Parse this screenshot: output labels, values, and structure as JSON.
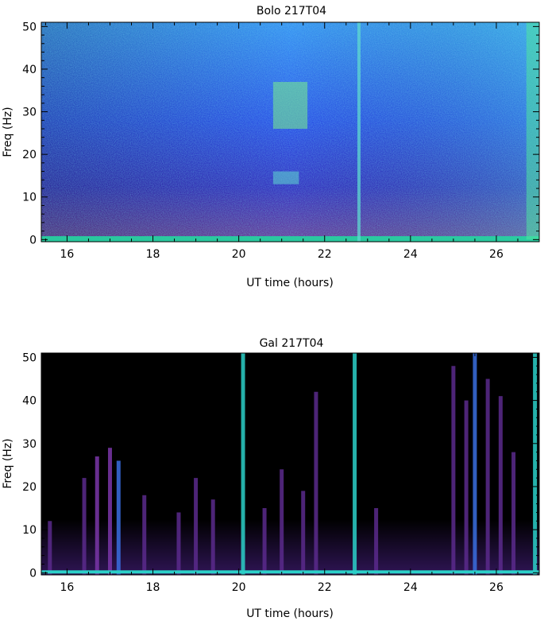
{
  "chart_data": [
    {
      "type": "heatmap",
      "title": "Bolo 217T04",
      "xlabel": "UT time (hours)",
      "ylabel": "Freq (Hz)",
      "xlim": [
        15.4,
        27.0
      ],
      "ylim": [
        -0.5,
        51
      ],
      "xticks": [
        16,
        18,
        20,
        22,
        24,
        26
      ],
      "yticks": [
        0,
        10,
        20,
        30,
        40,
        50
      ],
      "background": "#1a34e0",
      "features": [
        {
          "kind": "band",
          "x": [
            15.4,
            27.0
          ],
          "y": [
            -0.5,
            0.8
          ],
          "color": "#23d6a0"
        },
        {
          "kind": "patch",
          "x": [
            20.8,
            21.6
          ],
          "y": [
            26,
            37
          ],
          "color": "#7af08a"
        },
        {
          "kind": "patch",
          "x": [
            20.8,
            21.4
          ],
          "y": [
            13,
            16
          ],
          "color": "#5fd8d0"
        },
        {
          "kind": "line",
          "x": 22.8,
          "color": "#5fd8d0"
        },
        {
          "kind": "patch",
          "x": [
            26.7,
            27.0
          ],
          "y": [
            0,
            51
          ],
          "color": "#4fe6a0"
        }
      ]
    },
    {
      "type": "heatmap",
      "title": "Gal 217T04",
      "xlabel": "UT time (hours)",
      "ylabel": "Freq (Hz)",
      "xlim": [
        15.4,
        27.0
      ],
      "ylim": [
        -0.5,
        51
      ],
      "xticks": [
        16,
        18,
        20,
        22,
        24,
        26
      ],
      "yticks": [
        0,
        10,
        20,
        30,
        40,
        50
      ],
      "background": "#000000",
      "spikes": [
        {
          "x": 15.6,
          "top": 12,
          "color": "#5a2a8c"
        },
        {
          "x": 16.4,
          "top": 22,
          "color": "#5a2a8c"
        },
        {
          "x": 16.7,
          "top": 27,
          "color": "#7a36a8"
        },
        {
          "x": 17.0,
          "top": 29,
          "color": "#7a36a8"
        },
        {
          "x": 17.2,
          "top": 26,
          "color": "#3a6ee0"
        },
        {
          "x": 17.8,
          "top": 18,
          "color": "#5a2a8c"
        },
        {
          "x": 18.6,
          "top": 14,
          "color": "#5a2a8c"
        },
        {
          "x": 19.0,
          "top": 22,
          "color": "#5a2a8c"
        },
        {
          "x": 19.4,
          "top": 17,
          "color": "#5a2a8c"
        },
        {
          "x": 20.1,
          "top": 51,
          "color": "#2cd0c8"
        },
        {
          "x": 20.6,
          "top": 15,
          "color": "#5a2a8c"
        },
        {
          "x": 21.0,
          "top": 24,
          "color": "#5a2a8c"
        },
        {
          "x": 21.5,
          "top": 19,
          "color": "#5a2a8c"
        },
        {
          "x": 21.8,
          "top": 42,
          "color": "#5a2a8c"
        },
        {
          "x": 22.7,
          "top": 51,
          "color": "#2cd0c8"
        },
        {
          "x": 23.2,
          "top": 15,
          "color": "#5a2a8c"
        },
        {
          "x": 25.0,
          "top": 48,
          "color": "#5a2a8c"
        },
        {
          "x": 25.3,
          "top": 40,
          "color": "#5a2a8c"
        },
        {
          "x": 25.5,
          "top": 51,
          "color": "#3a6ee0"
        },
        {
          "x": 25.8,
          "top": 45,
          "color": "#5a2a8c"
        },
        {
          "x": 26.1,
          "top": 41,
          "color": "#5a2a8c"
        },
        {
          "x": 26.4,
          "top": 28,
          "color": "#5a2a8c"
        },
        {
          "x": 26.9,
          "top": 51,
          "color": "#2cd0c8"
        }
      ],
      "baseline_color": "#2cd0c8"
    }
  ]
}
